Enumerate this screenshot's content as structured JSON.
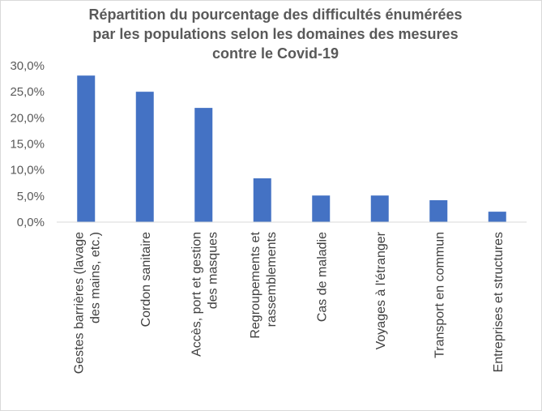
{
  "chart_data": {
    "type": "bar",
    "title_lines": [
      "Répartition du pourcentage des difficultés énumérées",
      "par les populations selon les domaines des mesures",
      "contre le Covid-19"
    ],
    "categories": [
      [
        "Gestes barrières (lavage",
        "des mains, etc.)"
      ],
      [
        "Cordon sanitaire"
      ],
      [
        "Accès, port et gestion",
        "des masques"
      ],
      [
        "Regroupements et",
        "rassemblements"
      ],
      [
        "Cas de maladie"
      ],
      [
        "Voyages à l'étranger"
      ],
      [
        "Transport en commun"
      ],
      [
        "Entreprises et structures"
      ]
    ],
    "values": [
      28.1,
      25.0,
      21.9,
      8.4,
      5.1,
      5.1,
      4.2,
      2.0
    ],
    "ylim": [
      0,
      30
    ],
    "yticks": [
      0,
      5,
      10,
      15,
      20,
      25,
      30
    ],
    "ytick_labels": [
      "0,0%",
      "5,0%",
      "10,0%",
      "15,0%",
      "20,0%",
      "25,0%",
      "30,0%"
    ],
    "bar_color": "#4472c4",
    "axis_color": "#d9d9d9",
    "grid": false,
    "legend": "none"
  }
}
